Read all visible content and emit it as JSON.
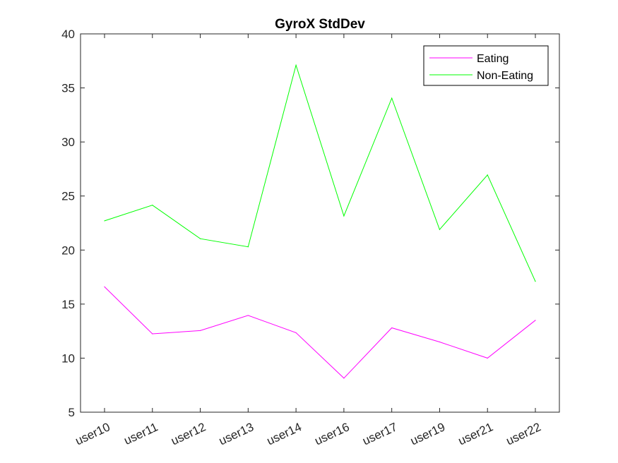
{
  "chart_data": {
    "type": "line",
    "title": "GyroX StdDev",
    "xlabel": "",
    "ylabel": "",
    "categories": [
      "user10",
      "user11",
      "user12",
      "user13",
      "user14",
      "user16",
      "user17",
      "user19",
      "user21",
      "user22"
    ],
    "ylim": [
      5,
      40
    ],
    "yticks": [
      5,
      10,
      15,
      20,
      25,
      30,
      35,
      40
    ],
    "grid": false,
    "legend_position": "top-right",
    "series": [
      {
        "name": "Eating",
        "color": "#ff00ff",
        "values": [
          16.6,
          12.25,
          12.55,
          13.95,
          12.35,
          8.15,
          12.8,
          11.5,
          10.0,
          13.5
        ]
      },
      {
        "name": "Non-Eating",
        "color": "#00ff00",
        "values": [
          22.7,
          24.15,
          21.05,
          20.3,
          37.1,
          23.15,
          34.05,
          21.9,
          26.95,
          17.1
        ]
      }
    ]
  }
}
